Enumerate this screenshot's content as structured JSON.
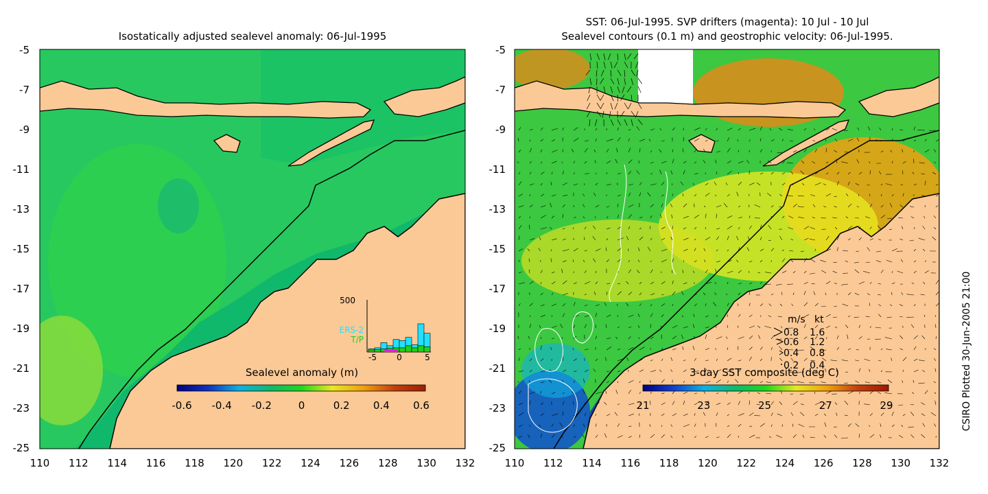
{
  "left_panel": {
    "title": "Isostatically adjusted sealevel anomaly: 06-Jul-1995",
    "colorbar_label": "Sealevel anomaly (m)",
    "colorbar_ticks": [
      "-0.6",
      "-0.4",
      "-0.2",
      "0",
      "0.2",
      "0.4",
      "0.6"
    ],
    "colorbar_stops": [
      "#00007f",
      "#1030c0",
      "#10b0e0",
      "#10b86c",
      "#1ed81e",
      "#e8e820",
      "#f0a010",
      "#c04010",
      "#9c2000"
    ],
    "inset": {
      "ymax_label": "500",
      "x_ticks": [
        "-5",
        "0",
        "5"
      ],
      "legend": [
        "ERS-2",
        "T/P"
      ],
      "ers2_color": "#22e0ff",
      "tp_color": "#1ed21e",
      "ers2_counts": [
        30,
        40,
        90,
        60,
        120,
        110,
        140,
        70,
        270,
        180
      ],
      "tp_counts": [
        20,
        25,
        30,
        35,
        40,
        40,
        60,
        40,
        60,
        50
      ]
    }
  },
  "right_panel": {
    "title_line1": "SST: 06-Jul-1995. SVP drifters (magenta): 10 Jul - 10 Jul",
    "title_line2": "Sealevel contours (0.1 m) and geostrophic velocity: 06-Jul-1995.",
    "colorbar_label": "3-day SST composite (deg C)",
    "colorbar_ticks": [
      "21",
      "23",
      "25",
      "27",
      "29"
    ],
    "colorbar_stops": [
      "#00007f",
      "#1040d0",
      "#10b0e0",
      "#10b86c",
      "#1ed81e",
      "#e8e820",
      "#f0a010",
      "#c04010",
      "#a01800"
    ],
    "velocity_legend": {
      "header": [
        "m/s",
        "kt"
      ],
      "rows": [
        [
          "0.8",
          "1.6"
        ],
        [
          "0.6",
          "1.2"
        ],
        [
          "0.4",
          "0.8"
        ],
        [
          "0.2",
          "0.4"
        ]
      ]
    }
  },
  "axes": {
    "y_labels": [
      "-5",
      "-7",
      "-9",
      "-11",
      "-13",
      "-15",
      "-17",
      "-19",
      "-21",
      "-23",
      "-25"
    ],
    "x_labels": [
      "110",
      "112",
      "114",
      "116",
      "118",
      "120",
      "122",
      "124",
      "126",
      "128",
      "130",
      "132"
    ]
  },
  "credit": "CSIRO Plotted 30-Jun-2005 21:00",
  "colors": {
    "land": "#fbc996",
    "sea_left": "#28c860",
    "shelf_left": "#10b86c",
    "sea_right": "#3cc840"
  }
}
